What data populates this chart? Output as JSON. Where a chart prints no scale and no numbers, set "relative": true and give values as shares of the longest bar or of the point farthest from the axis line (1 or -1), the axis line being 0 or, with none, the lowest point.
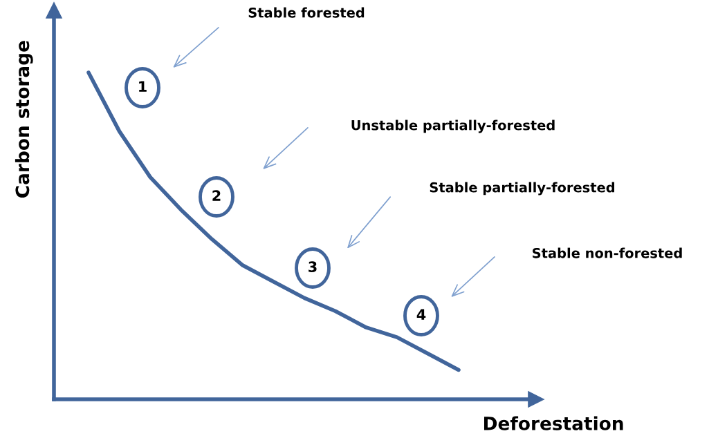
{
  "chart_data": {
    "type": "line",
    "relative": true,
    "xlabel": "Deforestation",
    "ylabel": "Carbon storage",
    "tick_labels": false,
    "legend": false,
    "marker": "none",
    "line_style": "solid",
    "categories": [
      null,
      null,
      null,
      null,
      null,
      null,
      null,
      null,
      null,
      null,
      null,
      null,
      null
    ],
    "series": [
      {
        "color": "#41659b",
        "values": [
          1,
          0.82,
          0.68,
          0.58,
          0.49,
          0.41,
          0.36,
          0.31,
          0.27,
          0.22,
          0.19,
          0.14,
          0.09
        ]
      }
    ],
    "annotations": [
      "1",
      "2",
      "3",
      "4",
      "Stable forested",
      "Unstable partially-forested",
      "Stable partially-forested",
      "Stable non-forested"
    ]
  }
}
